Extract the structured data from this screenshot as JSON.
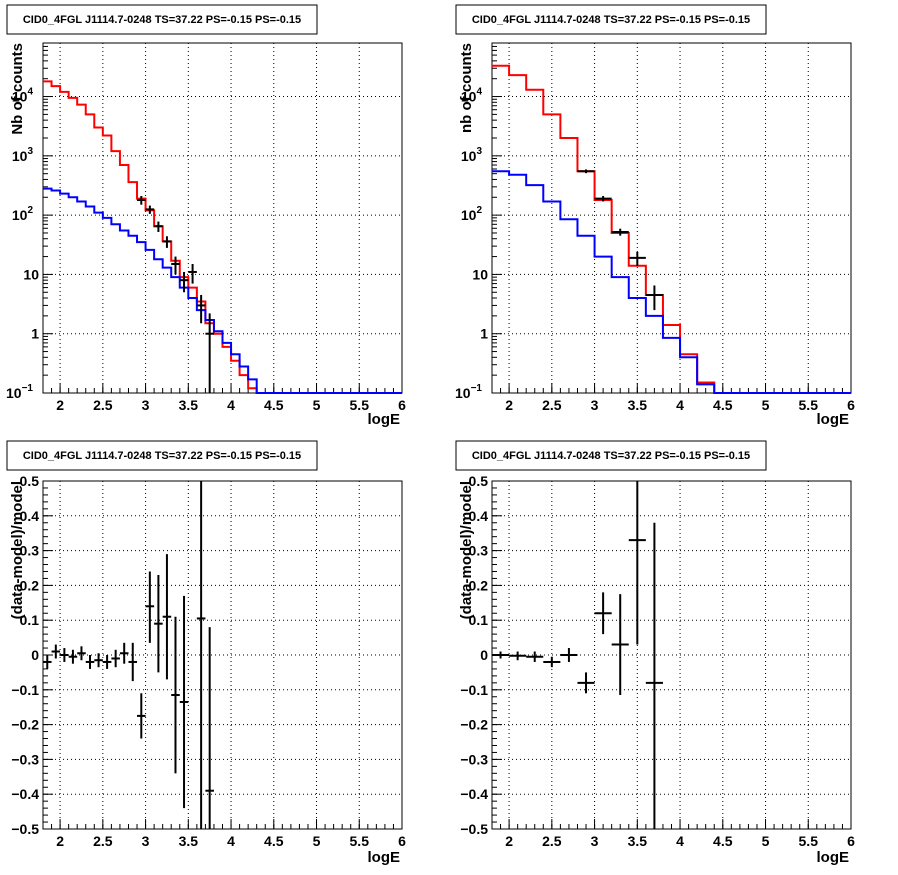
{
  "chart_data": [
    {
      "type": "line",
      "title": "CID0_4FGL J1114.7-0248 TS=37.22 PS=-0.15 PS=-0.15",
      "xlabel": "logE",
      "ylabel": "Nb of counts",
      "yscale": "log",
      "xlim": [
        1.8,
        6.0
      ],
      "ylim": [
        0.1,
        80000
      ],
      "grid": true,
      "xticks": [
        "2",
        "2.5",
        "3",
        "3.5",
        "4",
        "4.5",
        "5",
        "5.5",
        "6"
      ],
      "yticks": [
        {
          "value": 0.1,
          "base": "10",
          "exp": "−1"
        },
        {
          "value": 1,
          "base": "1",
          "exp": ""
        },
        {
          "value": 10,
          "base": "10",
          "exp": ""
        },
        {
          "value": 100,
          "base": "10",
          "exp": "2"
        },
        {
          "value": 1000,
          "base": "10",
          "exp": "3"
        },
        {
          "value": 10000,
          "base": "10",
          "exp": "4"
        }
      ],
      "bin_edges": [
        1.8,
        1.9,
        2.0,
        2.1,
        2.2,
        2.3,
        2.4,
        2.5,
        2.6,
        2.7,
        2.8,
        2.9,
        3.0,
        3.1,
        3.2,
        3.3,
        3.4,
        3.5,
        3.6,
        3.7,
        3.8,
        3.9,
        4.0,
        4.1,
        4.2,
        4.3,
        4.4,
        4.5,
        4.6,
        4.7,
        4.8,
        4.9,
        5.0,
        5.1,
        5.2,
        5.3,
        5.4,
        5.5,
        5.6,
        5.7,
        5.8,
        5.9,
        6.0
      ],
      "series": [
        {
          "color": "#ff0000",
          "values": [
            18000,
            15000,
            12000,
            9500,
            7300,
            5000,
            3000,
            2200,
            1200,
            700,
            360,
            190,
            120,
            65,
            36,
            17,
            9,
            6,
            3.5,
            1.5,
            1.0,
            0.6,
            0.35,
            0.2,
            0.12,
            0.1,
            0.1,
            0.1,
            0.1,
            0.1,
            0.1,
            0.1,
            0.1,
            0.1,
            0.1,
            0.1,
            0.1,
            0.1,
            0.1,
            0.1,
            0.1,
            0.1
          ]
        },
        {
          "color": "#0000ff",
          "values": [
            280,
            260,
            230,
            200,
            170,
            140,
            110,
            90,
            70,
            55,
            45,
            35,
            26,
            18,
            13,
            9,
            6,
            4,
            2.5,
            1.7,
            1.1,
            0.7,
            0.45,
            0.28,
            0.17,
            0.1,
            0.1,
            0.1,
            0.1,
            0.1,
            0.1,
            0.1,
            0.1,
            0.1,
            0.1,
            0.1,
            0.1,
            0.1,
            0.1,
            0.1,
            0.1,
            0.1
          ]
        }
      ],
      "points": [
        {
          "x": 2.95,
          "y": 180,
          "ylo": 150,
          "yhi": 210,
          "xerr": 0.05
        },
        {
          "x": 3.05,
          "y": 125,
          "ylo": 105,
          "yhi": 145,
          "xerr": 0.05
        },
        {
          "x": 3.15,
          "y": 65,
          "ylo": 52,
          "yhi": 78,
          "xerr": 0.05
        },
        {
          "x": 3.25,
          "y": 36,
          "ylo": 28,
          "yhi": 44,
          "xerr": 0.05
        },
        {
          "x": 3.35,
          "y": 15,
          "ylo": 10,
          "yhi": 20,
          "xerr": 0.05
        },
        {
          "x": 3.45,
          "y": 8,
          "ylo": 5,
          "yhi": 11,
          "xerr": 0.05
        },
        {
          "x": 3.55,
          "y": 11,
          "ylo": 7,
          "yhi": 15,
          "xerr": 0.05
        },
        {
          "x": 3.65,
          "y": 3,
          "ylo": 1.5,
          "yhi": 4.5,
          "xerr": 0.05
        },
        {
          "x": 3.75,
          "y": 1,
          "ylo": 0.1,
          "yhi": 2.2,
          "xerr": 0.05
        }
      ]
    },
    {
      "type": "line",
      "title": "CID0_4FGL J1114.7-0248 TS=37.22 PS=-0.15 PS=-0.15",
      "xlabel": "logE",
      "ylabel": "nb of counts",
      "yscale": "log",
      "xlim": [
        1.8,
        6.0
      ],
      "ylim": [
        0.1,
        80000
      ],
      "grid": true,
      "xticks": [
        "2",
        "2.5",
        "3",
        "3.5",
        "4",
        "4.5",
        "5",
        "5.5",
        "6"
      ],
      "yticks": [
        {
          "value": 0.1,
          "base": "10",
          "exp": "−1"
        },
        {
          "value": 1,
          "base": "1",
          "exp": ""
        },
        {
          "value": 10,
          "base": "10",
          "exp": ""
        },
        {
          "value": 100,
          "base": "10",
          "exp": "2"
        },
        {
          "value": 1000,
          "base": "10",
          "exp": "3"
        },
        {
          "value": 10000,
          "base": "10",
          "exp": "4"
        }
      ],
      "bin_edges": [
        1.8,
        2.0,
        2.2,
        2.4,
        2.6,
        2.8,
        3.0,
        3.2,
        3.4,
        3.6,
        3.8,
        4.0,
        4.2,
        4.4,
        4.6,
        4.8,
        5.0,
        5.2,
        5.4,
        5.6,
        5.8,
        6.0
      ],
      "series": [
        {
          "color": "#ff0000",
          "values": [
            33000,
            23000,
            13000,
            5000,
            2000,
            550,
            180,
            50,
            14,
            4.5,
            1.4,
            0.45,
            0.15,
            0.1,
            0.1,
            0.1,
            0.1,
            0.1,
            0.1,
            0.1,
            0.1
          ]
        },
        {
          "color": "#0000ff",
          "values": [
            550,
            480,
            320,
            170,
            85,
            45,
            20,
            9,
            4,
            2,
            0.85,
            0.4,
            0.14,
            0.1,
            0.1,
            0.1,
            0.1,
            0.1,
            0.1,
            0.1,
            0.1
          ]
        }
      ],
      "points": [
        {
          "x": 2.9,
          "y": 550,
          "ylo": 510,
          "yhi": 590,
          "xerr": 0.1
        },
        {
          "x": 3.1,
          "y": 190,
          "ylo": 170,
          "yhi": 210,
          "xerr": 0.1
        },
        {
          "x": 3.3,
          "y": 52,
          "ylo": 45,
          "yhi": 59,
          "xerr": 0.1
        },
        {
          "x": 3.5,
          "y": 19,
          "ylo": 14,
          "yhi": 24,
          "xerr": 0.1
        },
        {
          "x": 3.7,
          "y": 4.5,
          "ylo": 2.5,
          "yhi": 6.5,
          "xerr": 0.1
        }
      ]
    },
    {
      "type": "scatter",
      "title": "CID0_4FGL J1114.7-0248 TS=37.22 PS=-0.15 PS=-0.15",
      "xlabel": "logE",
      "ylabel": "(data-model)/model",
      "yscale": "linear",
      "xlim": [
        1.8,
        6.0
      ],
      "ylim": [
        -0.5,
        0.5
      ],
      "grid": true,
      "xticks": [
        "2",
        "2.5",
        "3",
        "3.5",
        "4",
        "4.5",
        "5",
        "5.5",
        "6"
      ],
      "yticks": [
        {
          "value": -0.5,
          "label": "−0.5"
        },
        {
          "value": -0.4,
          "label": "−0.4"
        },
        {
          "value": -0.3,
          "label": "−0.3"
        },
        {
          "value": -0.2,
          "label": "−0.2"
        },
        {
          "value": -0.1,
          "label": "−0.1"
        },
        {
          "value": 0,
          "label": "0"
        },
        {
          "value": 0.1,
          "label": "0.1"
        },
        {
          "value": 0.2,
          "label": "0.2"
        },
        {
          "value": 0.3,
          "label": "0.3"
        },
        {
          "value": 0.4,
          "label": "0.4"
        },
        {
          "value": 0.5,
          "label": "0.5"
        }
      ],
      "points": [
        {
          "x": 1.85,
          "y": -0.02,
          "ylo": -0.04,
          "yhi": 0.0,
          "xerr": 0.05
        },
        {
          "x": 1.95,
          "y": 0.01,
          "ylo": -0.01,
          "yhi": 0.03,
          "xerr": 0.05
        },
        {
          "x": 2.05,
          "y": 0.0,
          "ylo": -0.02,
          "yhi": 0.02,
          "xerr": 0.05
        },
        {
          "x": 2.15,
          "y": -0.005,
          "ylo": -0.025,
          "yhi": 0.015,
          "xerr": 0.05
        },
        {
          "x": 2.25,
          "y": 0.005,
          "ylo": -0.015,
          "yhi": 0.025,
          "xerr": 0.05
        },
        {
          "x": 2.35,
          "y": -0.02,
          "ylo": -0.04,
          "yhi": 0.0,
          "xerr": 0.05
        },
        {
          "x": 2.45,
          "y": -0.015,
          "ylo": -0.035,
          "yhi": 0.005,
          "xerr": 0.05
        },
        {
          "x": 2.55,
          "y": -0.02,
          "ylo": -0.04,
          "yhi": 0.0,
          "xerr": 0.05
        },
        {
          "x": 2.65,
          "y": -0.01,
          "ylo": -0.035,
          "yhi": 0.015,
          "xerr": 0.05
        },
        {
          "x": 2.75,
          "y": 0.005,
          "ylo": -0.025,
          "yhi": 0.035,
          "xerr": 0.05
        },
        {
          "x": 2.85,
          "y": -0.02,
          "ylo": -0.075,
          "yhi": 0.035,
          "xerr": 0.05
        },
        {
          "x": 2.95,
          "y": -0.175,
          "ylo": -0.24,
          "yhi": -0.11,
          "xerr": 0.05
        },
        {
          "x": 3.05,
          "y": 0.14,
          "ylo": 0.035,
          "yhi": 0.24,
          "xerr": 0.05
        },
        {
          "x": 3.15,
          "y": 0.09,
          "ylo": -0.05,
          "yhi": 0.23,
          "xerr": 0.05
        },
        {
          "x": 3.25,
          "y": 0.11,
          "ylo": -0.07,
          "yhi": 0.29,
          "xerr": 0.05
        },
        {
          "x": 3.35,
          "y": -0.115,
          "ylo": -0.34,
          "yhi": 0.11,
          "xerr": 0.05
        },
        {
          "x": 3.45,
          "y": -0.135,
          "ylo": -0.44,
          "yhi": 0.17,
          "xerr": 0.05
        },
        {
          "x": 3.65,
          "y": 0.105,
          "ylo": -0.5,
          "yhi": 0.5,
          "xerr": 0.05
        },
        {
          "x": 3.75,
          "y": -0.39,
          "ylo": -0.5,
          "yhi": 0.08,
          "xerr": 0.05
        }
      ]
    },
    {
      "type": "scatter",
      "title": "CID0_4FGL J1114.7-0248 TS=37.22 PS=-0.15 PS=-0.15",
      "xlabel": "logE",
      "ylabel": "(data-model)/model",
      "yscale": "linear",
      "xlim": [
        1.8,
        6.0
      ],
      "ylim": [
        -0.5,
        0.5
      ],
      "grid": true,
      "xticks": [
        "2",
        "2.5",
        "3",
        "3.5",
        "4",
        "4.5",
        "5",
        "5.5",
        "6"
      ],
      "yticks": [
        {
          "value": -0.5,
          "label": "−0.5"
        },
        {
          "value": -0.4,
          "label": "−0.4"
        },
        {
          "value": -0.3,
          "label": "−0.3"
        },
        {
          "value": -0.2,
          "label": "−0.2"
        },
        {
          "value": -0.1,
          "label": "−0.1"
        },
        {
          "value": 0,
          "label": "0"
        },
        {
          "value": 0.1,
          "label": "0.1"
        },
        {
          "value": 0.2,
          "label": "0.2"
        },
        {
          "value": 0.3,
          "label": "0.3"
        },
        {
          "value": 0.4,
          "label": "0.4"
        },
        {
          "value": 0.5,
          "label": "0.5"
        }
      ],
      "points": [
        {
          "x": 1.9,
          "y": 0.0,
          "ylo": -0.01,
          "yhi": 0.01,
          "xerr": 0.1
        },
        {
          "x": 2.1,
          "y": -0.002,
          "ylo": -0.015,
          "yhi": 0.01,
          "xerr": 0.1
        },
        {
          "x": 2.3,
          "y": -0.005,
          "ylo": -0.02,
          "yhi": 0.01,
          "xerr": 0.1
        },
        {
          "x": 2.5,
          "y": -0.02,
          "ylo": -0.035,
          "yhi": -0.005,
          "xerr": 0.1
        },
        {
          "x": 2.7,
          "y": 0.0,
          "ylo": -0.02,
          "yhi": 0.02,
          "xerr": 0.1
        },
        {
          "x": 2.9,
          "y": -0.08,
          "ylo": -0.11,
          "yhi": -0.05,
          "xerr": 0.1
        },
        {
          "x": 3.1,
          "y": 0.12,
          "ylo": 0.06,
          "yhi": 0.18,
          "xerr": 0.1
        },
        {
          "x": 3.3,
          "y": 0.03,
          "ylo": -0.115,
          "yhi": 0.175,
          "xerr": 0.1
        },
        {
          "x": 3.5,
          "y": 0.33,
          "ylo": 0.03,
          "yhi": 0.5,
          "xerr": 0.1
        },
        {
          "x": 3.7,
          "y": -0.08,
          "ylo": -0.5,
          "yhi": 0.38,
          "xerr": 0.1
        }
      ]
    }
  ]
}
